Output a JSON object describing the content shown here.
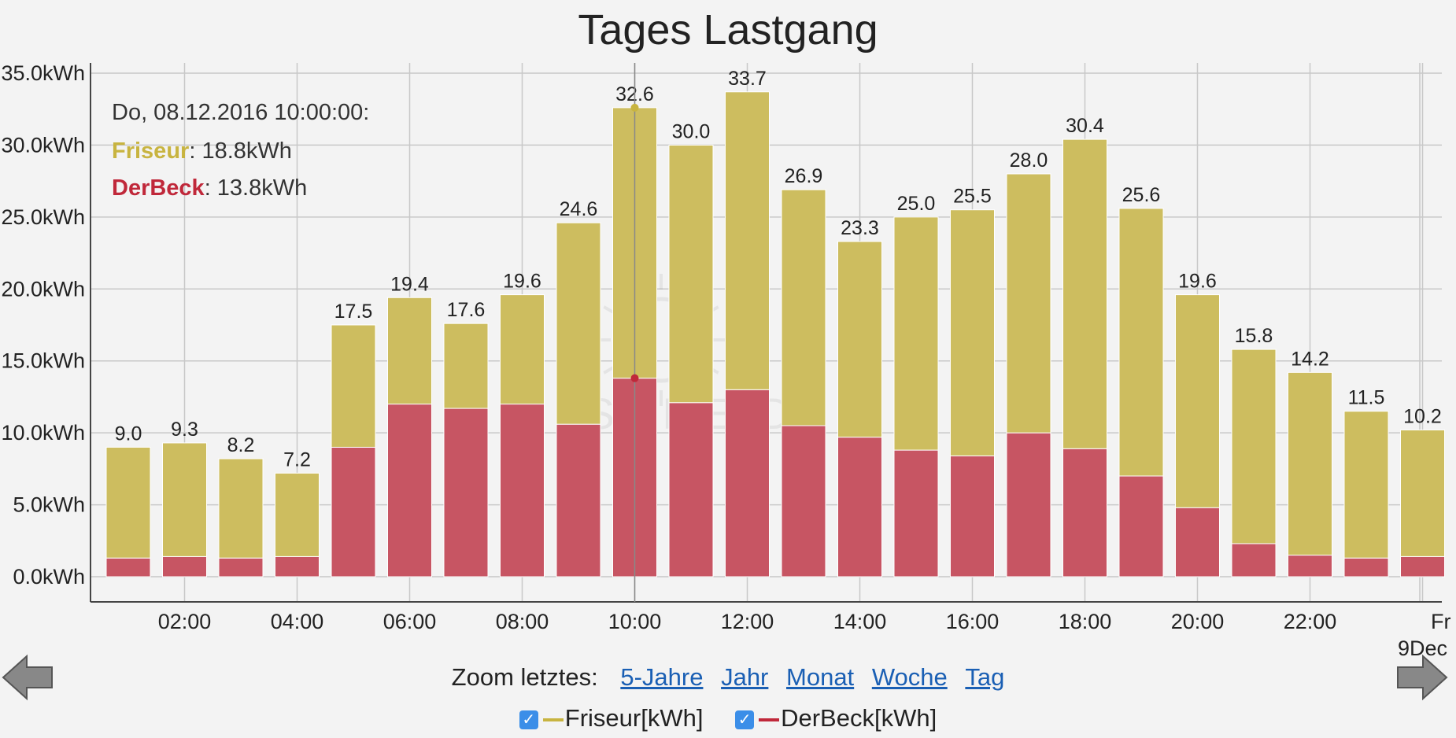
{
  "chart_data": {
    "type": "bar",
    "stacked": true,
    "title": "Tages Lastgang",
    "categories": [
      "01:00",
      "02:00",
      "03:00",
      "04:00",
      "05:00",
      "06:00",
      "07:00",
      "08:00",
      "09:00",
      "10:00",
      "11:00",
      "12:00",
      "13:00",
      "14:00",
      "15:00",
      "16:00",
      "17:00",
      "18:00",
      "19:00",
      "20:00",
      "21:00",
      "22:00",
      "23:00",
      "00:00"
    ],
    "series": [
      {
        "name": "DerBeck",
        "color": "#c75563",
        "values": [
          1.3,
          1.4,
          1.3,
          1.4,
          9.0,
          12.0,
          11.7,
          12.0,
          10.6,
          13.8,
          12.1,
          13.0,
          10.5,
          9.7,
          8.8,
          8.4,
          10.0,
          8.9,
          7.0,
          4.8,
          2.3,
          1.5,
          1.3,
          1.4
        ]
      },
      {
        "name": "Friseur",
        "color": "#cdbd5f",
        "values": [
          7.7,
          7.9,
          6.9,
          5.8,
          8.5,
          7.4,
          5.9,
          7.6,
          14.0,
          18.8,
          17.9,
          20.7,
          16.4,
          13.6,
          16.2,
          17.1,
          18.0,
          21.5,
          18.6,
          14.8,
          13.5,
          12.7,
          10.2,
          8.8
        ]
      }
    ],
    "totals": [
      "9.0",
      "9.3",
      "8.2",
      "7.2",
      "17.5",
      "19.4",
      "17.6",
      "19.6",
      "24.6",
      "32.6",
      "30.0",
      "33.7",
      "26.9",
      "23.3",
      "25.0",
      "25.5",
      "28.0",
      "30.4",
      "25.6",
      "19.6",
      "15.8",
      "14.2",
      "11.5",
      "10.2"
    ],
    "y_ticks": [
      "0.0kWh",
      "5.0kWh",
      "10.0kWh",
      "15.0kWh",
      "20.0kWh",
      "25.0kWh",
      "30.0kWh",
      "35.0kWh"
    ],
    "x_ticks": [
      "02:00",
      "04:00",
      "06:00",
      "08:00",
      "10:00",
      "12:00",
      "14:00",
      "16:00",
      "18:00",
      "20:00",
      "22:00"
    ],
    "x_end_label_1": "Fr",
    "x_end_label_2": "9Dec",
    "ylim": [
      0,
      35
    ],
    "grid": true,
    "tooltip": {
      "index": 9,
      "header": "Do, 08.12.2016 10:00:00:",
      "rows": [
        {
          "name": "Friseur",
          "value": "18.8kWh",
          "color": "#c8b440"
        },
        {
          "name": "DerBeck",
          "value": "13.8kWh",
          "color": "#c0283a"
        }
      ]
    }
  },
  "watermark_text": "SCHEIDL",
  "nav": {
    "zoom_label": "Zoom letztes:",
    "zoom_links": [
      "5-Jahre",
      "Jahr",
      "Monat",
      "Woche",
      "Tag"
    ]
  },
  "legend": [
    {
      "label": "Friseur[kWh]",
      "color": "#c8b440"
    },
    {
      "label": "DerBeck[kWh]",
      "color": "#c0283a"
    }
  ]
}
